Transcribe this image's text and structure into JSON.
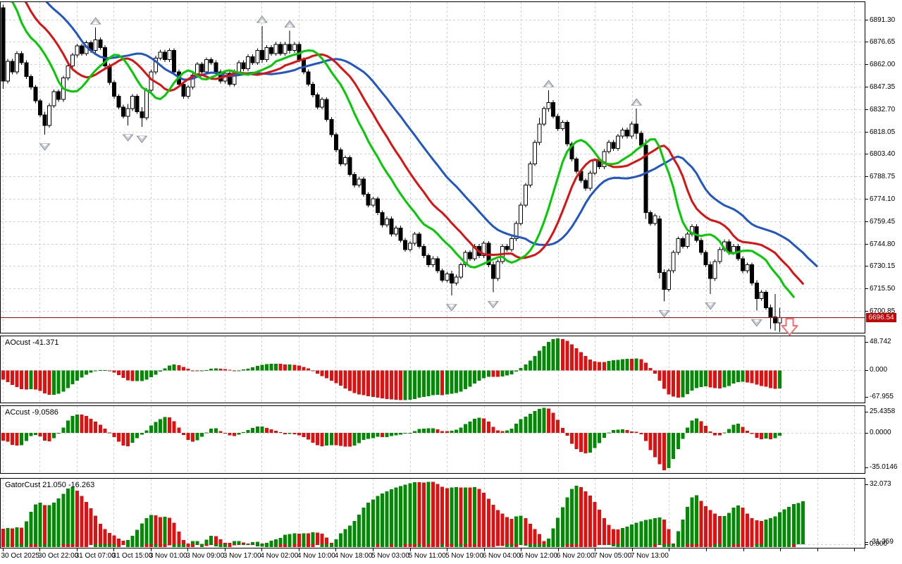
{
  "chart_data": {
    "type": "candlestick",
    "time_labels": [
      "30 Oct 2025",
      "30 Oct 22:00",
      "31 Oct 07:00",
      "31 Oct 15:00",
      "3 Nov 01:00",
      "3 Nov 09:00",
      "3 Nov 17:00",
      "4 Nov 02:00",
      "4 Nov 10:00",
      "4 Nov 18:00",
      "5 Nov 03:00",
      "5 Nov 11:00",
      "5 Nov 19:00",
      "6 Nov 04:00",
      "6 Nov 12:00",
      "6 Nov 20:00",
      "7 Nov 05:00",
      "7 Nov 13:00"
    ],
    "price_ticks": [
      "6891.30",
      "6876.65",
      "6862.00",
      "6847.35",
      "6832.70",
      "6818.05",
      "6803.40",
      "6788.75",
      "6774.10",
      "6759.45",
      "6744.80",
      "6730.15",
      "6715.50",
      "6700.85"
    ],
    "current_price": "6696.54",
    "bars": {
      "left_edge_bar": [
        6886,
        6893,
        6781,
        6851
      ],
      "closes": [
        6851,
        6864,
        6857,
        6869,
        6863,
        6854,
        6847,
        6838,
        6829,
        6822,
        6835,
        6844,
        6839,
        6853,
        6861,
        6868,
        6874,
        6869,
        6876,
        6871,
        6878,
        6873,
        6861,
        6850,
        6841,
        6834,
        6828,
        6833,
        6841,
        6831,
        6827,
        6845,
        6857,
        6866,
        6870,
        6865,
        6871,
        6857,
        6849,
        6841,
        6847,
        6855,
        6862,
        6857,
        6865,
        6863,
        6857,
        6851,
        6856,
        6849,
        6857,
        6863,
        6859,
        6867,
        6863,
        6871,
        6865,
        6873,
        6869,
        6875,
        6869,
        6875,
        6871,
        6875,
        6865,
        6857,
        6849,
        6842,
        6834,
        6839,
        6826,
        6816,
        6806,
        6797,
        6801,
        6790,
        6783,
        6787,
        6777,
        6770,
        6774,
        6765,
        6757,
        6761,
        6751,
        6755,
        6747,
        6741,
        6745,
        6751,
        6743,
        6737,
        6731,
        6735,
        6727,
        6721,
        6725,
        6719,
        6723,
        6731,
        6739,
        6735,
        6743,
        6737,
        6745,
        6731,
        6722,
        6733,
        6743,
        6741,
        6748,
        6758,
        6770,
        6783,
        6797,
        6811,
        6823,
        6833,
        6837,
        6828,
        6820,
        6824,
        6810,
        6800,
        6792,
        6786,
        6781,
        6791,
        6799,
        6795,
        6805,
        6811,
        6807,
        6815,
        6819,
        6815,
        6823,
        6817,
        6809,
        6765,
        6758,
        6763,
        6726,
        6715,
        6727,
        6739,
        6748,
        6743,
        6751,
        6756,
        6747,
        6739,
        6731,
        6722,
        6733,
        6741,
        6746,
        6739,
        6743,
        6735,
        6727,
        6731,
        6719,
        6709,
        6713,
        6703,
        6697,
        6693,
        6696.54
      ],
      "overrides": {
        "0": [
          6899,
          6901,
          6846,
          6851
        ],
        "9": [
          6829,
          6831,
          6816,
          6822
        ],
        "20": [
          6871,
          6886,
          6869,
          6878
        ],
        "27": [
          6828,
          6836,
          6822,
          6833
        ],
        "30": [
          6831,
          6834,
          6821,
          6827
        ],
        "56": [
          6871,
          6887,
          6863,
          6865
        ],
        "62": [
          6875,
          6884,
          6869,
          6871
        ],
        "97": [
          6725,
          6727,
          6711,
          6719
        ],
        "106": [
          6731,
          6733,
          6713,
          6722
        ],
        "116": [
          6811,
          6827,
          6809,
          6823
        ],
        "118": [
          6833,
          6845,
          6831,
          6837
        ],
        "137": [
          6823,
          6833,
          6813,
          6817
        ],
        "139": [
          6809,
          6813,
          6761,
          6765
        ],
        "142": [
          6761,
          6763,
          6722,
          6726
        ],
        "143": [
          6726,
          6728,
          6707,
          6715
        ],
        "153": [
          6731,
          6733,
          6712,
          6722
        ],
        "163": [
          6719,
          6721,
          6701,
          6709
        ],
        "166": [
          6703,
          6705,
          6689,
          6697
        ],
        "167": [
          6697,
          6712,
          6688,
          6693
        ],
        "168": [
          6693,
          6703,
          6687,
          6696.54
        ]
      }
    },
    "indicators": {
      "ao": {
        "label_full": "AOcust -41.371",
        "scale_labels": [
          "48.742",
          "0.000",
          "-67.955"
        ]
      },
      "ac": {
        "label_full": "ACcust -9.0586",
        "scale_labels": [
          "25.4358",
          "0.0000",
          "-35.0146"
        ]
      },
      "gator": {
        "label_full": "GatorCust 21.050 -16.263",
        "scale_labels": [
          "32.073",
          "0.000",
          "-31.359"
        ]
      }
    },
    "colors": {
      "bull": "#FFFFFF",
      "bear": "#000000",
      "jaw": "#2056C8",
      "teeth": "#E01010",
      "lips": "#00CC00",
      "hist_up": "#008C00",
      "hist_down": "#E01010",
      "price_line": "#CC0000",
      "grid": "#D2D2D2",
      "fractal_fill": "#C9CED6",
      "fractal_stroke": "#8A909A",
      "signal_arrow": "#FF6A6A"
    }
  }
}
